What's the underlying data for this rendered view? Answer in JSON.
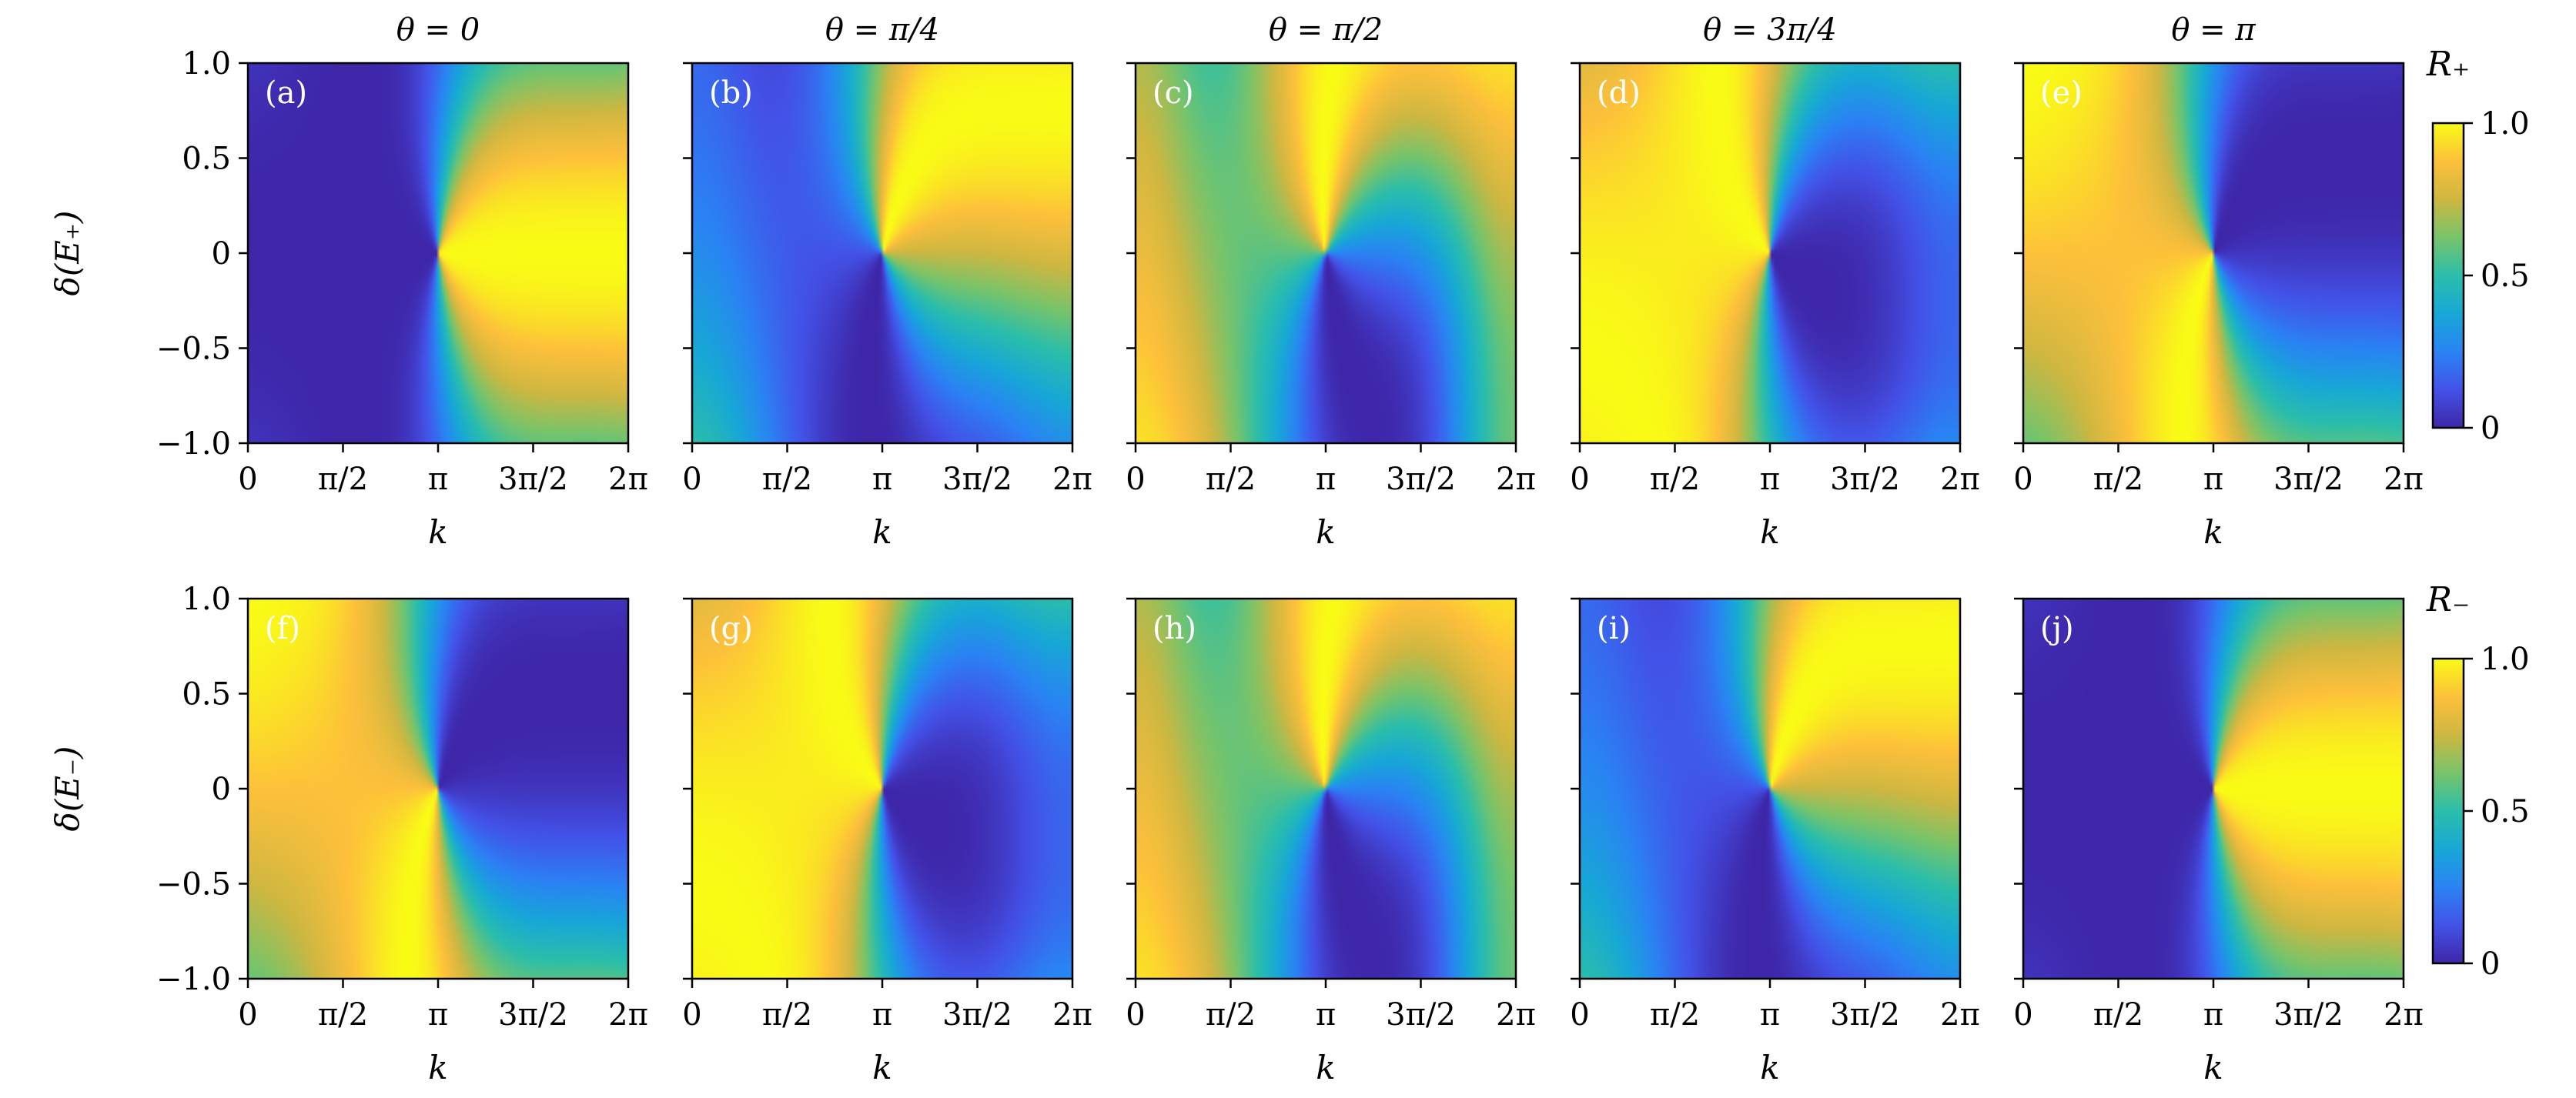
{
  "figure": {
    "colorbar_label_top": "R₊",
    "colorbar_label_bottom": "R₋",
    "colorbar_ticks": [
      "0",
      "0.5",
      "1.0"
    ],
    "colormap": [
      "#3e26a8",
      "#4352e8",
      "#2a83f4",
      "#17a8d6",
      "#2bbeaa",
      "#78c46a",
      "#ceb741",
      "#fdc03b",
      "#f9fb15"
    ]
  },
  "chart_data": [
    {
      "id": "a",
      "type": "heatmap",
      "panel_label": "(a)",
      "title": "θ = 0",
      "row": 0,
      "col": 0,
      "theta": 0,
      "branch": "+",
      "ylabel": "δ(E₊)",
      "xlabel": "k",
      "xlim": [
        0,
        6.2832
      ],
      "ylim": [
        -1.0,
        1.0
      ],
      "zlim": [
        0,
        1
      ],
      "xticks": [
        "0",
        "π/2",
        "π",
        "3π/2",
        "2π"
      ],
      "yticks": [
        "−1.0",
        "−0.5",
        "0",
        "0.5",
        "1.0"
      ]
    },
    {
      "id": "b",
      "type": "heatmap",
      "panel_label": "(b)",
      "title": "θ = π/4",
      "row": 0,
      "col": 1,
      "theta": 0.7854,
      "branch": "+",
      "ylabel": "",
      "xlabel": "k",
      "xlim": [
        0,
        6.2832
      ],
      "ylim": [
        -1.0,
        1.0
      ],
      "zlim": [
        0,
        1
      ],
      "xticks": [
        "0",
        "π/2",
        "π",
        "3π/2",
        "2π"
      ],
      "yticks": []
    },
    {
      "id": "c",
      "type": "heatmap",
      "panel_label": "(c)",
      "title": "θ = π/2",
      "row": 0,
      "col": 2,
      "theta": 1.5708,
      "branch": "+",
      "ylabel": "",
      "xlabel": "k",
      "xlim": [
        0,
        6.2832
      ],
      "ylim": [
        -1.0,
        1.0
      ],
      "zlim": [
        0,
        1
      ],
      "xticks": [
        "0",
        "π/2",
        "π",
        "3π/2",
        "2π"
      ],
      "yticks": []
    },
    {
      "id": "d",
      "type": "heatmap",
      "panel_label": "(d)",
      "title": "θ = 3π/4",
      "row": 0,
      "col": 3,
      "theta": 2.3562,
      "branch": "+",
      "ylabel": "",
      "xlabel": "k",
      "xlim": [
        0,
        6.2832
      ],
      "ylim": [
        -1.0,
        1.0
      ],
      "zlim": [
        0,
        1
      ],
      "xticks": [
        "0",
        "π/2",
        "π",
        "3π/2",
        "2π"
      ],
      "yticks": []
    },
    {
      "id": "e",
      "type": "heatmap",
      "panel_label": "(e)",
      "title": "θ = π",
      "row": 0,
      "col": 4,
      "theta": 3.1416,
      "branch": "+",
      "ylabel": "",
      "xlabel": "k",
      "xlim": [
        0,
        6.2832
      ],
      "ylim": [
        -1.0,
        1.0
      ],
      "zlim": [
        0,
        1
      ],
      "xticks": [
        "0",
        "π/2",
        "π",
        "3π/2",
        "2π"
      ],
      "yticks": []
    },
    {
      "id": "f",
      "type": "heatmap",
      "panel_label": "(f)",
      "title": "",
      "row": 1,
      "col": 0,
      "theta": 0,
      "branch": "-",
      "ylabel": "δ(E₋)",
      "xlabel": "k",
      "xlim": [
        0,
        6.2832
      ],
      "ylim": [
        -1.0,
        1.0
      ],
      "zlim": [
        0,
        1
      ],
      "xticks": [
        "0",
        "π/2",
        "π",
        "3π/2",
        "2π"
      ],
      "yticks": [
        "−1.0",
        "−0.5",
        "0",
        "0.5",
        "1.0"
      ]
    },
    {
      "id": "g",
      "type": "heatmap",
      "panel_label": "(g)",
      "title": "",
      "row": 1,
      "col": 1,
      "theta": 0.7854,
      "branch": "-",
      "ylabel": "",
      "xlabel": "k",
      "xlim": [
        0,
        6.2832
      ],
      "ylim": [
        -1.0,
        1.0
      ],
      "zlim": [
        0,
        1
      ],
      "xticks": [
        "0",
        "π/2",
        "π",
        "3π/2",
        "2π"
      ],
      "yticks": []
    },
    {
      "id": "h",
      "type": "heatmap",
      "panel_label": "(h)",
      "title": "",
      "row": 1,
      "col": 2,
      "theta": 1.5708,
      "branch": "-",
      "ylabel": "",
      "xlabel": "k",
      "xlim": [
        0,
        6.2832
      ],
      "ylim": [
        -1.0,
        1.0
      ],
      "zlim": [
        0,
        1
      ],
      "xticks": [
        "0",
        "π/2",
        "π",
        "3π/2",
        "2π"
      ],
      "yticks": []
    },
    {
      "id": "i",
      "type": "heatmap",
      "panel_label": "(i)",
      "title": "",
      "row": 1,
      "col": 3,
      "theta": 2.3562,
      "branch": "-",
      "ylabel": "",
      "xlabel": "k",
      "xlim": [
        0,
        6.2832
      ],
      "ylim": [
        -1.0,
        1.0
      ],
      "zlim": [
        0,
        1
      ],
      "xticks": [
        "0",
        "π/2",
        "π",
        "3π/2",
        "2π"
      ],
      "yticks": []
    },
    {
      "id": "j",
      "type": "heatmap",
      "panel_label": "(j)",
      "title": "",
      "row": 1,
      "col": 4,
      "theta": 3.1416,
      "branch": "-",
      "ylabel": "",
      "xlabel": "k",
      "xlim": [
        0,
        6.2832
      ],
      "ylim": [
        -1.0,
        1.0
      ],
      "zlim": [
        0,
        1
      ],
      "xticks": [
        "0",
        "π/2",
        "π",
        "3π/2",
        "2π"
      ],
      "yticks": []
    }
  ]
}
